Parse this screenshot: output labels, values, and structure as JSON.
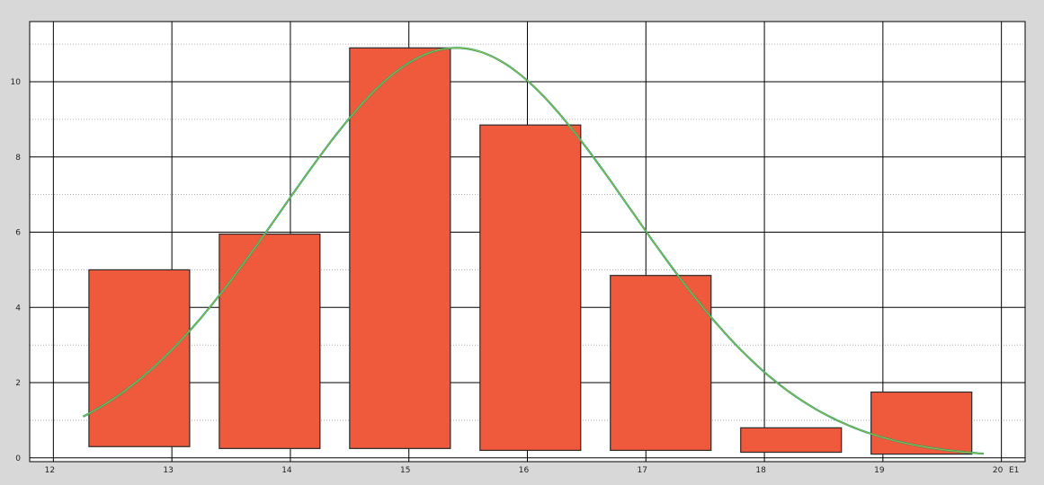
{
  "chart_data": {
    "type": "bar",
    "title": "",
    "xlabel": "",
    "ylabel": "",
    "x_unit_label": "E1",
    "xlim": [
      11.8,
      20.2
    ],
    "ylim": [
      -0.1,
      11.6
    ],
    "x_ticks": [
      12,
      13,
      14,
      15,
      16,
      17,
      18,
      19,
      20
    ],
    "y_ticks": [
      0,
      2,
      4,
      6,
      8,
      10
    ],
    "bars": [
      {
        "x0": 12.3,
        "x1": 13.15,
        "base": 0.3,
        "top": 5.0
      },
      {
        "x0": 13.4,
        "x1": 14.25,
        "base": 0.25,
        "top": 5.95
      },
      {
        "x0": 14.5,
        "x1": 15.35,
        "base": 0.25,
        "top": 10.9
      },
      {
        "x0": 15.6,
        "x1": 16.45,
        "base": 0.2,
        "top": 8.85
      },
      {
        "x0": 16.7,
        "x1": 17.55,
        "base": 0.2,
        "top": 4.85
      },
      {
        "x0": 17.8,
        "x1": 18.65,
        "base": 0.15,
        "top": 0.8
      },
      {
        "x0": 18.9,
        "x1": 19.75,
        "base": 0.1,
        "top": 1.75
      }
    ],
    "curve": {
      "type": "gaussian",
      "amplitude": 10.9,
      "mean": 15.4,
      "sigma": 1.47,
      "x_range": [
        12.25,
        19.85
      ]
    },
    "grid": true,
    "legend": "none",
    "colors": {
      "bar_fill": "#f05a3c",
      "curve_outer": "#1aa37a",
      "curve_inner": "#d8c020",
      "plot_bg": "#ffffff",
      "frame_bg": "#d8d8d8"
    }
  }
}
